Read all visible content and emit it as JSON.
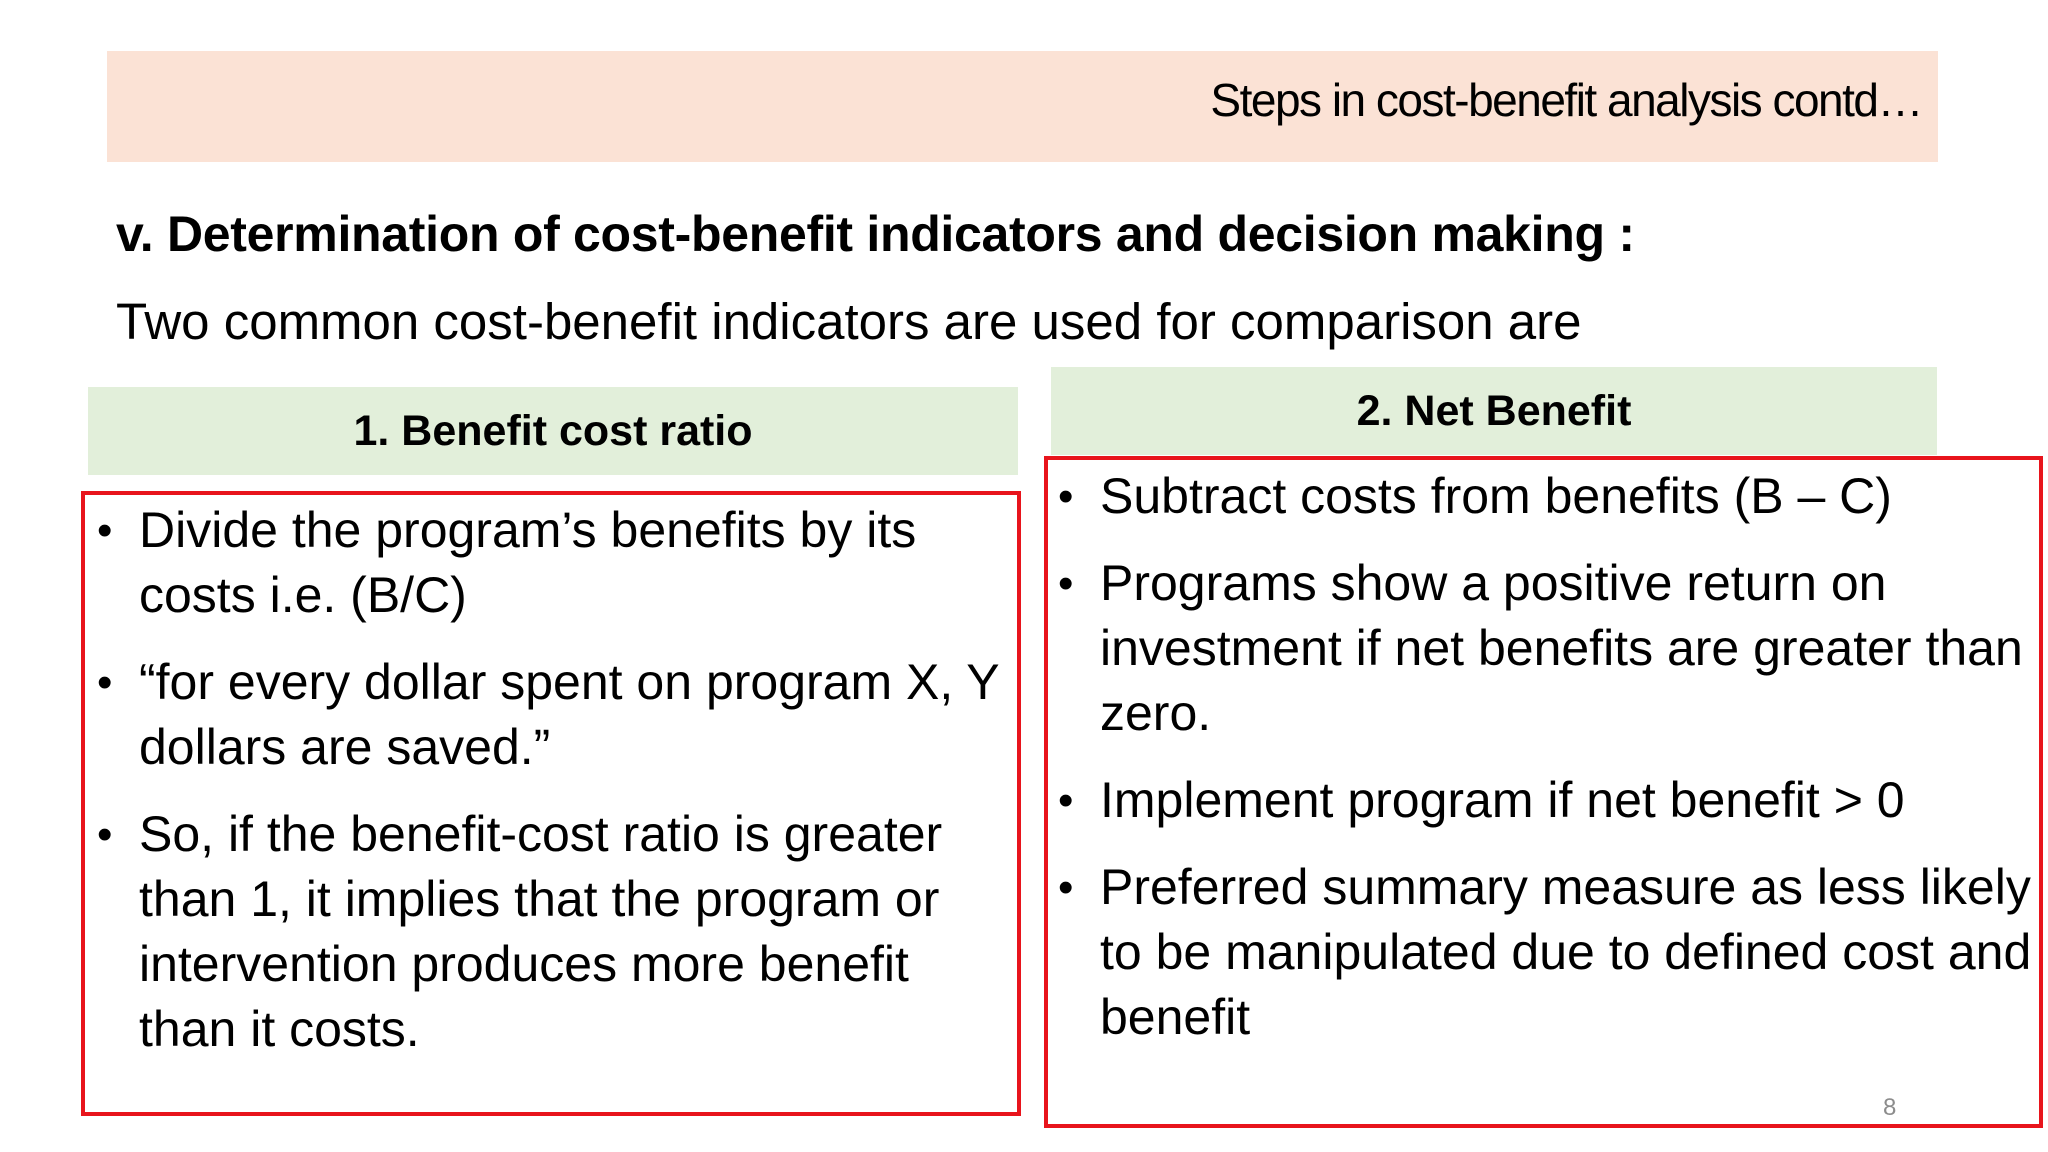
{
  "header": {
    "title": "Steps in cost-benefit analysis contd…"
  },
  "section": {
    "heading": "v. Determination of cost-benefit indicators and decision making :",
    "intro": "Two common cost-benefit indicators are used for comparison are"
  },
  "columns": [
    {
      "title": "1. Benefit cost ratio",
      "bullets": [
        "Divide the program’s benefits by its costs i.e. (B/C)",
        "“for every dollar spent on program X, Y dollars are saved.”",
        "So, if the benefit-cost ratio is greater than 1, it implies that the program or intervention produces more benefit than it costs."
      ]
    },
    {
      "title": "2. Net Benefit",
      "bullets": [
        "Subtract costs from benefits (B – C)",
        "Programs show a positive return on investment if net benefits are greater than zero.",
        "Implement program if net benefit > 0",
        "Preferred summary measure as less likely to be manipulated due to defined cost and benefit"
      ]
    }
  ],
  "bullet_symbol": "•",
  "page_number": "8",
  "colors": {
    "header_band": "#fbe2d5",
    "column_header": "#e2efda",
    "box_border": "#e8141c"
  }
}
